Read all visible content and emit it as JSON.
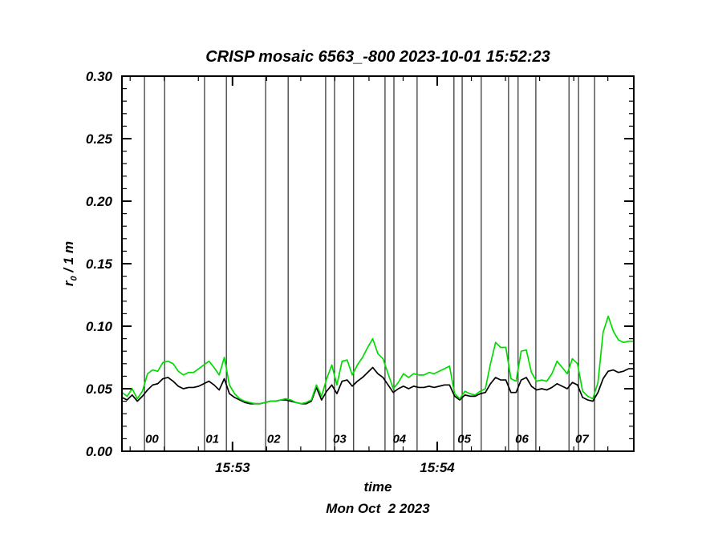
{
  "page": {
    "background": "#ffffff"
  },
  "chart_data": {
    "type": "line",
    "title": "CRISP mosaic 6563_-800 2023-10-01 15:52:23",
    "xlabel": "time",
    "xlabel_sub": "Mon Oct  2 2023",
    "ylabel": "r0 / 1 m",
    "ylabel_parts": {
      "base": "r",
      "sub": "0",
      "rest": " / 1 m"
    },
    "ylim": [
      0,
      0.3
    ],
    "x_range": [
      0,
      150
    ],
    "x_unit": "seconds",
    "x_start": 0,
    "x_step": 1.5,
    "y_major_ticks": [
      0.0,
      0.05,
      0.1,
      0.15,
      0.2,
      0.25,
      0.3
    ],
    "y_minor_step": 0.01,
    "x_major_ticks": [
      {
        "t": 32.4,
        "label": "15:53"
      },
      {
        "t": 92.4,
        "label": "15:54"
      }
    ],
    "x_minor_step": 10,
    "x_minor_offset": 2.4,
    "grid": false,
    "legend": false,
    "segment_lines_t": [
      6.6,
      12.5,
      24.2,
      30.6,
      42.1,
      48.7,
      59.7,
      62.3,
      67.9,
      77.1,
      79.7,
      86.5,
      97.3,
      99.7,
      105.3,
      113.3,
      116.1,
      121.3,
      131.0,
      133.8,
      138.5
    ],
    "segment_label_y": 0.01,
    "segment_labels": [
      {
        "label": "00",
        "t": 8.8
      },
      {
        "label": "01",
        "t": 26.5
      },
      {
        "label": "02",
        "t": 44.5
      },
      {
        "label": "03",
        "t": 63.8
      },
      {
        "label": "04",
        "t": 81.3
      },
      {
        "label": "05",
        "t": 100.3
      },
      {
        "label": "06",
        "t": 117.2
      },
      {
        "label": "07",
        "t": 134.8
      }
    ],
    "series": [
      {
        "name": "black",
        "color": "#000000",
        "values": [
          0.043,
          0.041,
          0.045,
          0.04,
          0.044,
          0.049,
          0.053,
          0.054,
          0.058,
          0.059,
          0.056,
          0.052,
          0.05,
          0.051,
          0.051,
          0.052,
          0.054,
          0.056,
          0.053,
          0.049,
          0.058,
          0.046,
          0.043,
          0.041,
          0.039,
          0.038,
          0.038,
          0.038,
          0.039,
          0.04,
          0.04,
          0.041,
          0.041,
          0.04,
          0.039,
          0.038,
          0.038,
          0.04,
          0.051,
          0.041,
          0.048,
          0.053,
          0.046,
          0.056,
          0.057,
          0.052,
          0.056,
          0.059,
          0.063,
          0.067,
          0.062,
          0.059,
          0.053,
          0.047,
          0.05,
          0.052,
          0.05,
          0.052,
          0.051,
          0.051,
          0.052,
          0.051,
          0.052,
          0.053,
          0.053,
          0.044,
          0.041,
          0.045,
          0.044,
          0.044,
          0.046,
          0.047,
          0.054,
          0.059,
          0.057,
          0.057,
          0.047,
          0.047,
          0.057,
          0.059,
          0.052,
          0.049,
          0.05,
          0.049,
          0.051,
          0.054,
          0.052,
          0.05,
          0.055,
          0.053,
          0.043,
          0.041,
          0.04,
          0.047,
          0.058,
          0.064,
          0.065,
          0.063,
          0.064,
          0.066,
          0.066
        ]
      },
      {
        "name": "green",
        "color": "#00dc00",
        "values": [
          0.047,
          0.044,
          0.05,
          0.042,
          0.048,
          0.062,
          0.065,
          0.064,
          0.071,
          0.072,
          0.07,
          0.064,
          0.061,
          0.063,
          0.063,
          0.066,
          0.069,
          0.072,
          0.067,
          0.061,
          0.075,
          0.053,
          0.046,
          0.042,
          0.04,
          0.039,
          0.038,
          0.038,
          0.039,
          0.04,
          0.04,
          0.041,
          0.042,
          0.041,
          0.039,
          0.038,
          0.039,
          0.041,
          0.053,
          0.044,
          0.058,
          0.069,
          0.053,
          0.072,
          0.073,
          0.061,
          0.069,
          0.075,
          0.083,
          0.09,
          0.078,
          0.074,
          0.062,
          0.05,
          0.055,
          0.062,
          0.059,
          0.062,
          0.061,
          0.061,
          0.063,
          0.062,
          0.064,
          0.066,
          0.068,
          0.046,
          0.042,
          0.048,
          0.046,
          0.045,
          0.048,
          0.05,
          0.07,
          0.087,
          0.083,
          0.083,
          0.058,
          0.056,
          0.08,
          0.081,
          0.063,
          0.056,
          0.057,
          0.056,
          0.062,
          0.072,
          0.067,
          0.062,
          0.074,
          0.07,
          0.048,
          0.044,
          0.042,
          0.055,
          0.095,
          0.108,
          0.096,
          0.089,
          0.087,
          0.088,
          0.088
        ]
      }
    ]
  }
}
